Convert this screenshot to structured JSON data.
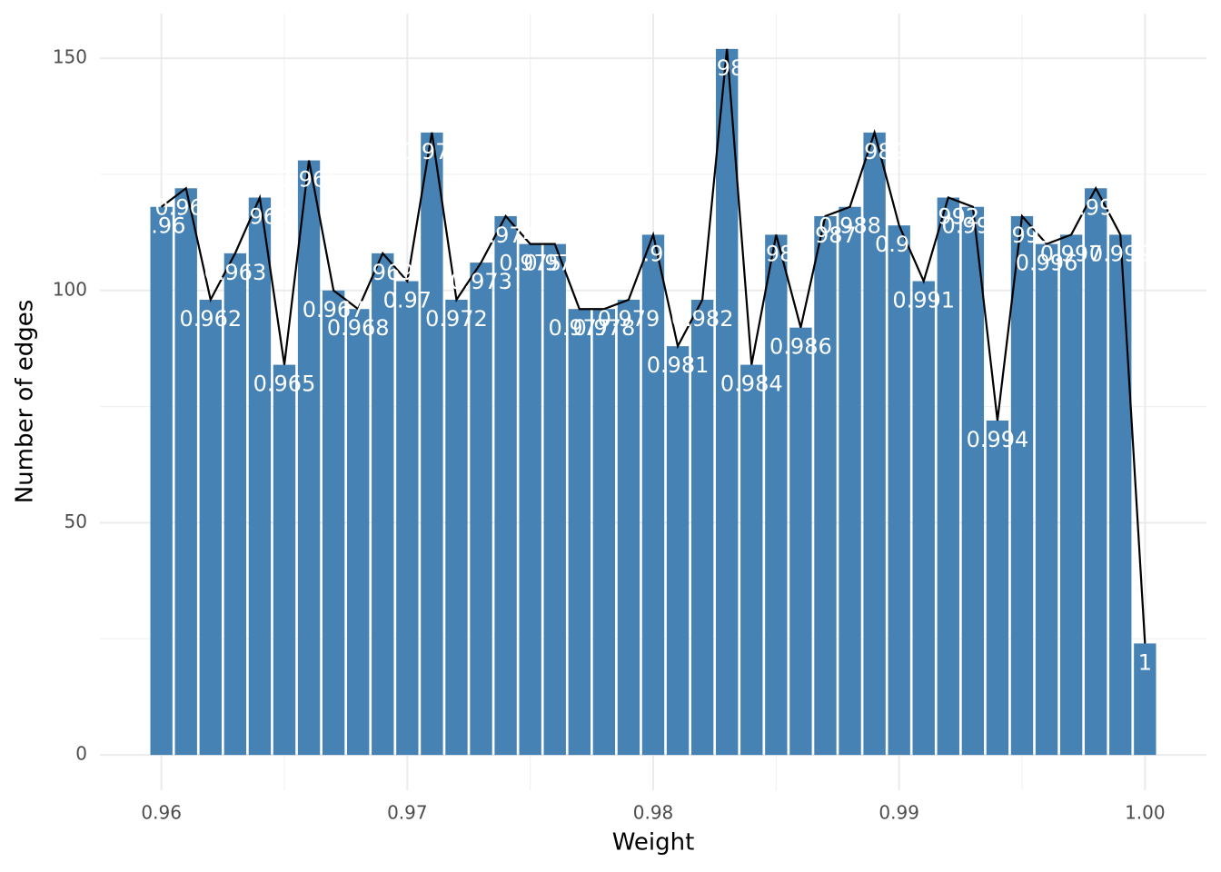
{
  "chart_data": {
    "type": "bar",
    "x_label": "Weight",
    "y_label": "Number of edges",
    "x": [
      0.96,
      0.961,
      0.962,
      0.963,
      0.964,
      0.965,
      0.966,
      0.967,
      0.968,
      0.969,
      0.97,
      0.971,
      0.972,
      0.973,
      0.974,
      0.975,
      0.976,
      0.977,
      0.978,
      0.979,
      0.98,
      0.981,
      0.982,
      0.983,
      0.984,
      0.985,
      0.986,
      0.987,
      0.988,
      0.989,
      0.99,
      0.991,
      0.992,
      0.993,
      0.994,
      0.995,
      0.996,
      0.997,
      0.998,
      0.999,
      1
    ],
    "values": [
      118,
      122,
      98,
      108,
      120,
      84,
      128,
      100,
      96,
      108,
      102,
      134,
      98,
      106,
      116,
      110,
      110,
      96,
      96,
      98,
      112,
      88,
      98,
      152,
      84,
      112,
      92,
      116,
      118,
      134,
      114,
      102,
      120,
      118,
      72,
      116,
      110,
      112,
      122,
      112,
      24
    ],
    "color": "#4682b4",
    "line_color": "#000000",
    "overlay_line": true,
    "value_labels_from_x": true,
    "xlim": [
      0.9575,
      1.0025
    ],
    "xticks": [
      0.96,
      0.97,
      0.98,
      0.99,
      {
        "value": 1,
        "label": "1.00"
      }
    ],
    "minor_xticks": [
      0.965,
      0.975,
      0.985,
      0.995
    ],
    "ylim": [
      -7.6,
      159.6
    ],
    "yticks": [
      0,
      50,
      100,
      150
    ],
    "minor_yticks": [
      25,
      75,
      125
    ],
    "grid": true
  }
}
